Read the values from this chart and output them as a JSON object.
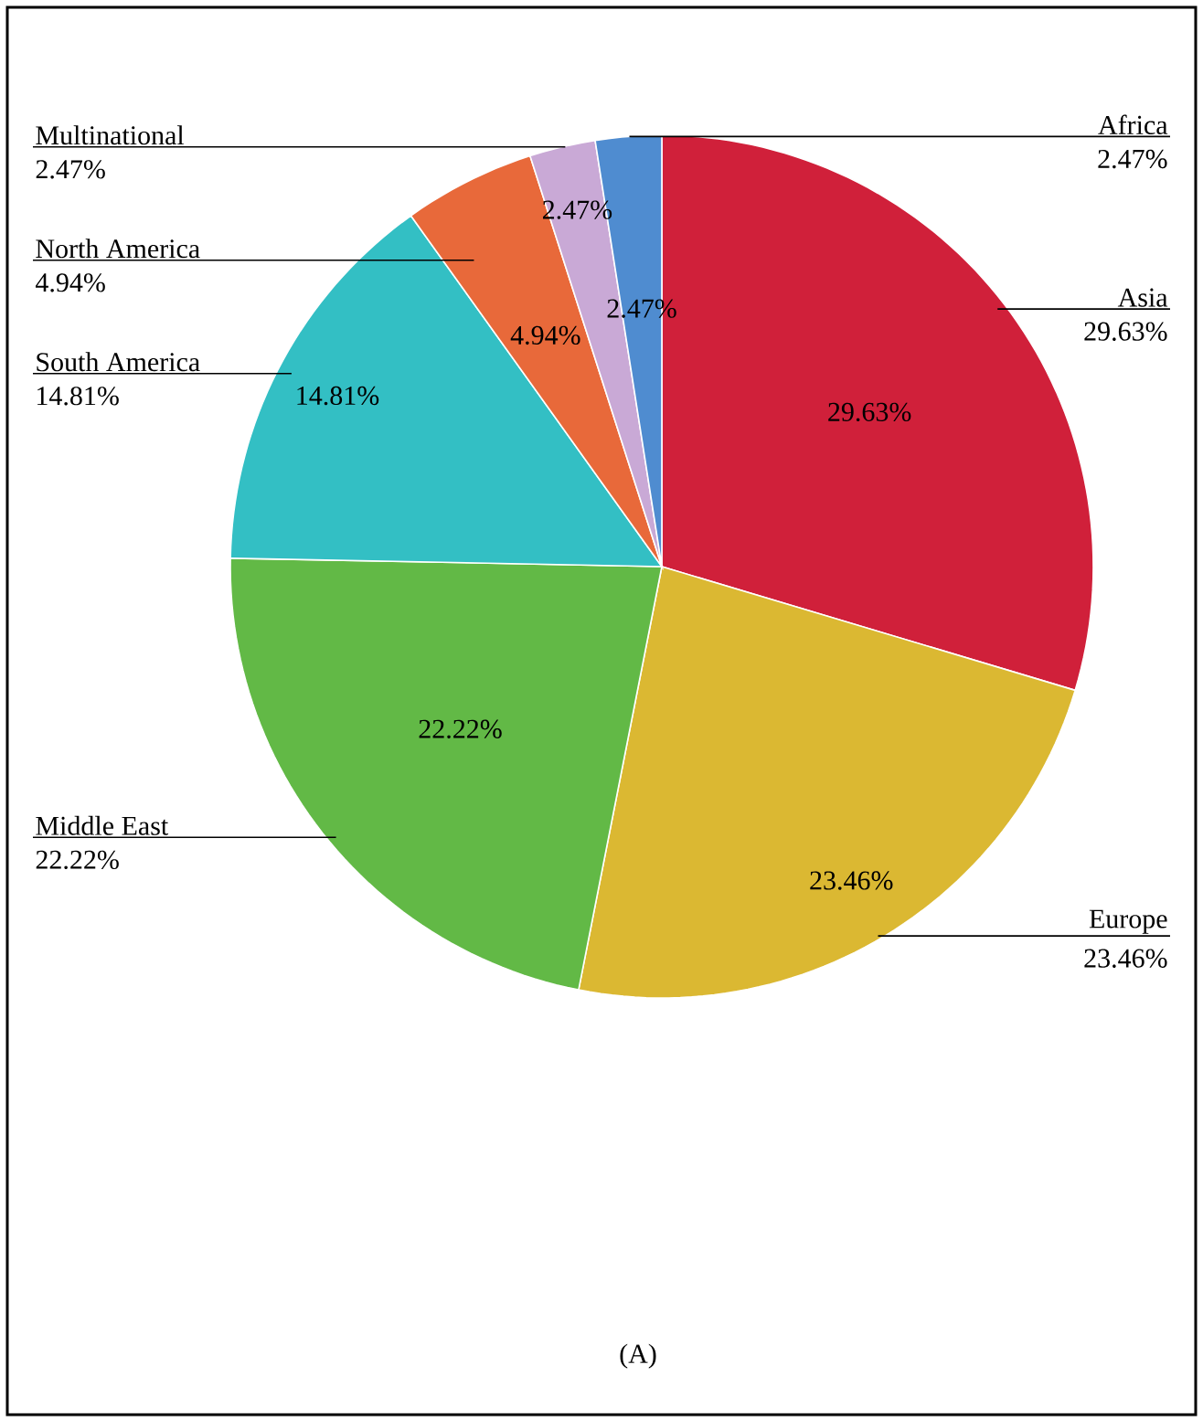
{
  "chart_data": {
    "type": "pie",
    "categories": [
      "Asia",
      "Europe",
      "Middle East",
      "South America",
      "North America",
      "Multinational",
      "Africa"
    ],
    "values": [
      29.63,
      23.46,
      22.22,
      14.81,
      4.94,
      2.47,
      2.47
    ],
    "value_labels": [
      "29.63%",
      "23.46%",
      "22.22%",
      "14.81%",
      "4.94%",
      "2.47%",
      "2.47%"
    ],
    "colors": [
      "#d0203a",
      "#dbb832",
      "#62b946",
      "#33bfc4",
      "#e8693a",
      "#c9a9d6",
      "#4f8cd0"
    ],
    "data_labels": true,
    "annotations": [
      "(A)"
    ]
  }
}
